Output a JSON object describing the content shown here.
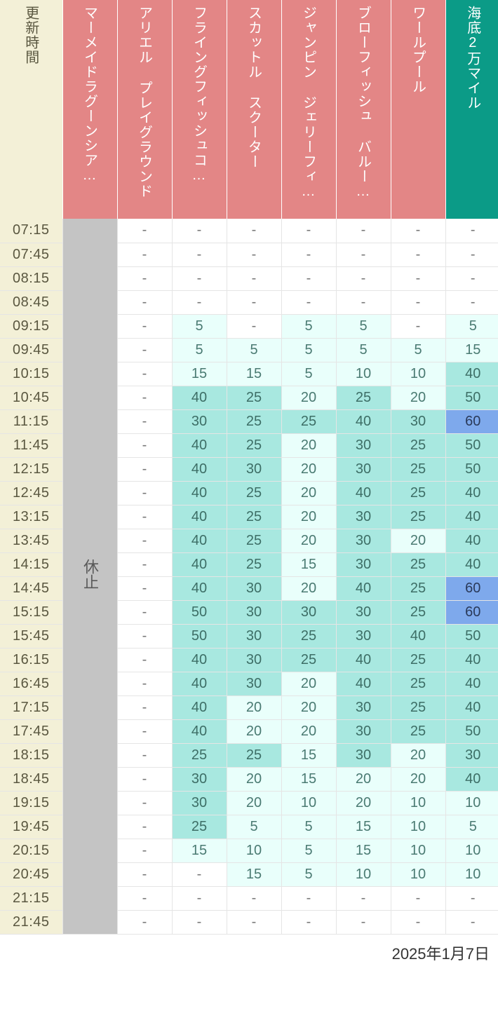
{
  "date_label": "2025年1月7日",
  "header": {
    "time_label": "更新時間",
    "time_bg": "#f3f0d7",
    "time_fg": "#5a5740",
    "normal_bg": "#e38686",
    "normal_fg": "#ffffff",
    "highlight_bg": "#0b9b87",
    "highlight_fg": "#ffffff",
    "columns": [
      {
        "label": "マーメイドラグーンシア…",
        "highlight": false
      },
      {
        "label": "アリエル プレイグラウンド",
        "highlight": false
      },
      {
        "label": "フライングフィッシュコ…",
        "highlight": false
      },
      {
        "label": "スカットル スクーター",
        "highlight": false
      },
      {
        "label": "ジャンピン ジェリーフィ…",
        "highlight": false
      },
      {
        "label": "ブローフィッシュ バルー…",
        "highlight": false
      },
      {
        "label": "ワールプール",
        "highlight": false
      },
      {
        "label": "海底2万マイル",
        "highlight": true
      }
    ]
  },
  "closed_text": "休止",
  "closed_bg": "#c4c4c4",
  "closed_fg": "#5a5a5a",
  "time_cell_bg": "#f3f0d7",
  "time_cell_fg": "#5a5740",
  "value_colors": {
    "blank_bg": "#ffffff",
    "blank_fg": "#777777",
    "tiers": [
      {
        "max": 9,
        "bg": "#e9fffb",
        "fg": "#4a7a72"
      },
      {
        "max": 24,
        "bg": "#e9fffb",
        "fg": "#4a7a72"
      },
      {
        "max": 54,
        "bg": "#a8e8e0",
        "fg": "#3d6e66"
      },
      {
        "max": 999,
        "bg": "#7ea9ec",
        "fg": "#2a3a5a"
      }
    ]
  },
  "times": [
    "07:15",
    "07:45",
    "08:15",
    "08:45",
    "09:15",
    "09:45",
    "10:15",
    "10:45",
    "11:15",
    "11:45",
    "12:15",
    "12:45",
    "13:15",
    "13:45",
    "14:15",
    "14:45",
    "15:15",
    "15:45",
    "16:15",
    "16:45",
    "17:15",
    "17:45",
    "18:15",
    "18:45",
    "19:15",
    "19:45",
    "20:15",
    "20:45",
    "21:15",
    "21:45"
  ],
  "column_closed": [
    true,
    false,
    false,
    false,
    false,
    false,
    false,
    false
  ],
  "data": [
    [
      null,
      null,
      null,
      null,
      null,
      null,
      null,
      null
    ],
    [
      null,
      null,
      null,
      null,
      null,
      null,
      null,
      null
    ],
    [
      null,
      null,
      null,
      null,
      null,
      null,
      null,
      null
    ],
    [
      null,
      null,
      null,
      null,
      null,
      null,
      null,
      null
    ],
    [
      null,
      null,
      5,
      null,
      5,
      5,
      null,
      5
    ],
    [
      null,
      null,
      5,
      5,
      5,
      5,
      5,
      15
    ],
    [
      null,
      null,
      15,
      15,
      5,
      10,
      10,
      40
    ],
    [
      null,
      null,
      40,
      25,
      20,
      25,
      20,
      50
    ],
    [
      null,
      null,
      30,
      25,
      25,
      40,
      30,
      60
    ],
    [
      null,
      null,
      40,
      25,
      20,
      30,
      25,
      50
    ],
    [
      null,
      null,
      40,
      30,
      20,
      30,
      25,
      50
    ],
    [
      null,
      null,
      40,
      25,
      20,
      40,
      25,
      40
    ],
    [
      null,
      null,
      40,
      25,
      20,
      30,
      25,
      40
    ],
    [
      null,
      null,
      40,
      25,
      20,
      30,
      20,
      40
    ],
    [
      null,
      null,
      40,
      25,
      15,
      30,
      25,
      40
    ],
    [
      null,
      null,
      40,
      30,
      20,
      40,
      25,
      60
    ],
    [
      null,
      null,
      50,
      30,
      30,
      30,
      25,
      60
    ],
    [
      null,
      null,
      50,
      30,
      25,
      30,
      40,
      50
    ],
    [
      null,
      null,
      40,
      30,
      25,
      40,
      25,
      40
    ],
    [
      null,
      null,
      40,
      30,
      20,
      40,
      25,
      40
    ],
    [
      null,
      null,
      40,
      20,
      20,
      30,
      25,
      40
    ],
    [
      null,
      null,
      40,
      20,
      20,
      30,
      25,
      50
    ],
    [
      null,
      null,
      25,
      25,
      15,
      30,
      20,
      30
    ],
    [
      null,
      null,
      30,
      20,
      15,
      20,
      20,
      40
    ],
    [
      null,
      null,
      30,
      20,
      10,
      20,
      10,
      10
    ],
    [
      null,
      null,
      25,
      5,
      5,
      15,
      10,
      5
    ],
    [
      null,
      null,
      15,
      10,
      5,
      15,
      10,
      10
    ],
    [
      null,
      null,
      null,
      15,
      5,
      10,
      10,
      10
    ],
    [
      null,
      null,
      null,
      null,
      null,
      null,
      null,
      null
    ],
    [
      null,
      null,
      null,
      null,
      null,
      null,
      null,
      null
    ]
  ]
}
